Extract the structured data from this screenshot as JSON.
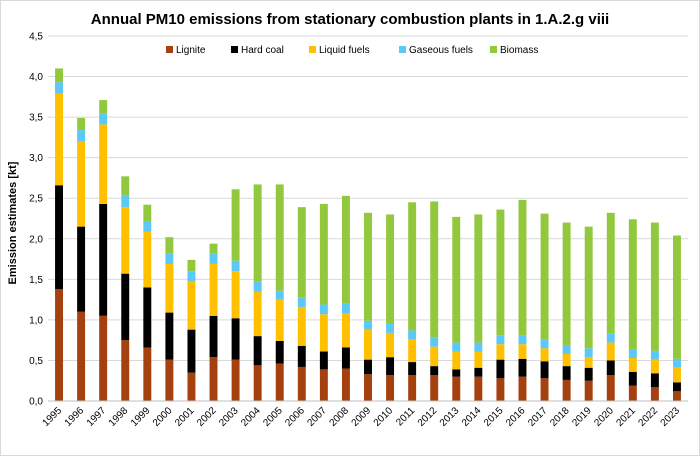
{
  "chart_data": {
    "type": "bar",
    "stacked": true,
    "title": "Annual PM10 emissions from stationary combustion plants in 1.A.2.g viii",
    "ylabel": "Emission estimates [kt]",
    "xlabel": "",
    "ylim": [
      0,
      4.5
    ],
    "ytick_step": 0.5,
    "ytick_labels": [
      "0,0",
      "0,5",
      "1,0",
      "1,5",
      "2,0",
      "2,5",
      "3,0",
      "3,5",
      "4,0",
      "4,5"
    ],
    "grid": true,
    "legend_position": "top",
    "categories": [
      "1995",
      "1996",
      "1997",
      "1998",
      "1999",
      "2000",
      "2001",
      "2002",
      "2003",
      "2004",
      "2005",
      "2006",
      "2007",
      "2008",
      "2009",
      "2010",
      "2011",
      "2012",
      "2013",
      "2014",
      "2015",
      "2016",
      "2017",
      "2018",
      "2019",
      "2020",
      "2021",
      "2022",
      "2023"
    ],
    "series": [
      {
        "name": "Lignite",
        "color": "#a5400f",
        "values": [
          1.38,
          1.1,
          1.05,
          0.75,
          0.66,
          0.51,
          0.35,
          0.54,
          0.51,
          0.44,
          0.46,
          0.42,
          0.39,
          0.4,
          0.33,
          0.32,
          0.32,
          0.32,
          0.3,
          0.3,
          0.28,
          0.3,
          0.28,
          0.26,
          0.25,
          0.32,
          0.19,
          0.17,
          0.12
        ]
      },
      {
        "name": "Hard coal",
        "color": "#000000",
        "values": [
          1.28,
          1.05,
          1.38,
          0.82,
          0.74,
          0.58,
          0.53,
          0.51,
          0.51,
          0.36,
          0.28,
          0.26,
          0.22,
          0.26,
          0.18,
          0.22,
          0.16,
          0.11,
          0.09,
          0.11,
          0.23,
          0.22,
          0.21,
          0.17,
          0.16,
          0.18,
          0.17,
          0.17,
          0.11
        ]
      },
      {
        "name": "Liquid fuels",
        "color": "#ffc000",
        "values": [
          1.13,
          1.05,
          0.98,
          0.82,
          0.69,
          0.6,
          0.59,
          0.64,
          0.58,
          0.55,
          0.51,
          0.48,
          0.46,
          0.42,
          0.37,
          0.3,
          0.28,
          0.24,
          0.22,
          0.2,
          0.19,
          0.18,
          0.16,
          0.15,
          0.13,
          0.22,
          0.17,
          0.17,
          0.18
        ]
      },
      {
        "name": "Gaseous fuels",
        "color": "#5bc8f5",
        "values": [
          0.14,
          0.14,
          0.14,
          0.14,
          0.13,
          0.13,
          0.13,
          0.13,
          0.13,
          0.12,
          0.11,
          0.12,
          0.12,
          0.12,
          0.11,
          0.11,
          0.11,
          0.11,
          0.11,
          0.11,
          0.11,
          0.11,
          0.11,
          0.11,
          0.11,
          0.11,
          0.11,
          0.11,
          0.11
        ]
      },
      {
        "name": "Biomass",
        "color": "#92c83e",
        "values": [
          0.17,
          0.15,
          0.16,
          0.24,
          0.2,
          0.2,
          0.14,
          0.12,
          0.88,
          1.2,
          1.31,
          1.11,
          1.24,
          1.33,
          1.33,
          1.35,
          1.58,
          1.68,
          1.55,
          1.58,
          1.55,
          1.67,
          1.55,
          1.51,
          1.5,
          1.49,
          1.6,
          1.58,
          1.52
        ]
      }
    ]
  }
}
